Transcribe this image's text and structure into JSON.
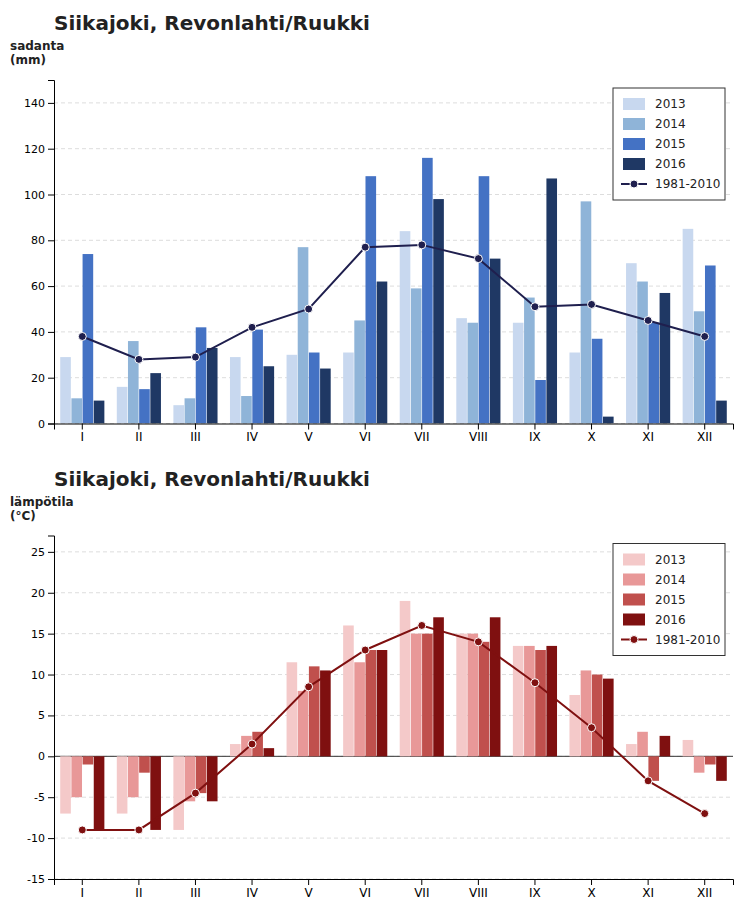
{
  "chart_data": [
    {
      "type": "bar",
      "title": "Siikajoki, Revonlahti/Ruukki",
      "ylabel": "sadanta\n(mm)",
      "categories": [
        "I",
        "II",
        "III",
        "IV",
        "V",
        "VI",
        "VII",
        "VIII",
        "IX",
        "X",
        "XI",
        "XII"
      ],
      "series": [
        {
          "name": "2013",
          "color": "#c8d8ef",
          "values": [
            29,
            16,
            8,
            29,
            30,
            31,
            84,
            46,
            44,
            31,
            70,
            85
          ]
        },
        {
          "name": "2014",
          "color": "#8fb4d8",
          "values": [
            11,
            36,
            11,
            12,
            77,
            45,
            59,
            44,
            55,
            97,
            62,
            49
          ]
        },
        {
          "name": "2015",
          "color": "#4472c4",
          "values": [
            74,
            15,
            42,
            41,
            31,
            108,
            116,
            108,
            19,
            37,
            44,
            69
          ]
        },
        {
          "name": "2016",
          "color": "#1f3864",
          "values": [
            10,
            22,
            33,
            25,
            24,
            62,
            98,
            72,
            107,
            3,
            57,
            10
          ]
        },
        {
          "name": "1981-2010",
          "type": "line",
          "marker": "circle",
          "color": "#1f1f4e",
          "values": [
            38,
            28,
            29,
            42,
            50,
            77,
            78,
            72,
            51,
            52,
            45,
            38
          ]
        }
      ],
      "ylim": [
        0,
        150
      ],
      "yticks": [
        0,
        20,
        40,
        60,
        80,
        100,
        120,
        140
      ],
      "grid": true,
      "legend": "upper right"
    },
    {
      "type": "bar",
      "title": "Siikajoki, Revonlahti/Ruukki",
      "ylabel": "lämpötila\n(°C)",
      "categories": [
        "I",
        "II",
        "III",
        "IV",
        "V",
        "VI",
        "VII",
        "VIII",
        "IX",
        "X",
        "XI",
        "XII"
      ],
      "series": [
        {
          "name": "2013",
          "color": "#f4c9c9",
          "values": [
            -7,
            -7,
            -9,
            1.5,
            11.5,
            16,
            19,
            15,
            13.5,
            7.5,
            1.5,
            2
          ]
        },
        {
          "name": "2014",
          "color": "#e89898",
          "values": [
            -5,
            -5,
            -5.5,
            2.5,
            8,
            11.5,
            15,
            15,
            13.5,
            10.5,
            3,
            -2
          ]
        },
        {
          "name": "2015",
          "color": "#c0504d",
          "values": [
            -1,
            -2,
            -4.5,
            3,
            11,
            13,
            15,
            14,
            13,
            10,
            -3,
            -1
          ]
        },
        {
          "name": "2016",
          "color": "#7f1010",
          "values": [
            -9,
            -9,
            -5.5,
            1,
            10.5,
            13,
            17,
            17,
            13.5,
            9.5,
            2.5,
            -3
          ]
        },
        {
          "name": "1981-2010",
          "type": "line",
          "marker": "circle",
          "color": "#7f1010",
          "values": [
            -9,
            -9,
            -4.5,
            1.5,
            8.5,
            13,
            16,
            14,
            9,
            3.5,
            -3,
            -7
          ]
        }
      ],
      "ylim": [
        -15,
        27
      ],
      "yticks": [
        -15,
        -10,
        -5,
        0,
        5,
        10,
        15,
        20,
        25
      ],
      "grid": true,
      "legend": "upper right"
    }
  ]
}
